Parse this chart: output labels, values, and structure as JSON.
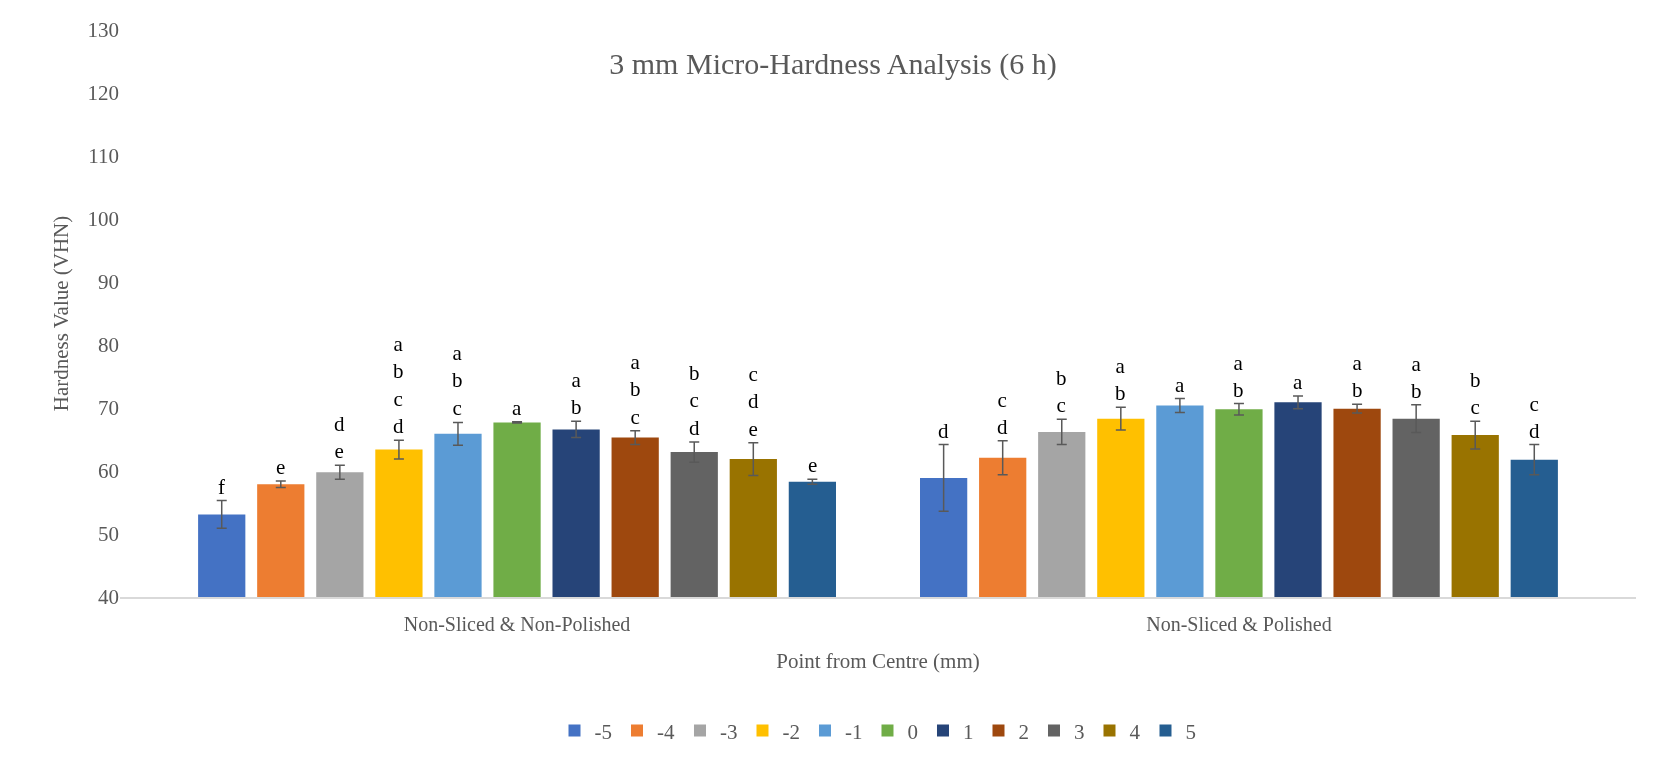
{
  "chart_data": {
    "type": "bar",
    "title": "3 mm Micro-Hardness Analysis (6 h)",
    "xlabel": "Point from Centre (mm)",
    "ylabel": "Hardness Value (VHN)",
    "categories": [
      "Non-Sliced & Non-Polished",
      "Non-Sliced & Polished"
    ],
    "ylim": [
      40,
      130
    ],
    "yticks": [
      40,
      50,
      60,
      70,
      80,
      90,
      100,
      110,
      120,
      130
    ],
    "grid": false,
    "legend": "bottom",
    "series": [
      {
        "name": "-5",
        "color": "#4472c4",
        "values": [
          53.1,
          58.9
        ],
        "errors": [
          2.2,
          5.3
        ],
        "value_labels": [
          "f",
          "d"
        ]
      },
      {
        "name": "-4",
        "color": "#ed7d31",
        "values": [
          57.9,
          62.1
        ],
        "errors": [
          0.5,
          2.7
        ],
        "value_labels": [
          "e",
          "c\nd"
        ]
      },
      {
        "name": "-3",
        "color": "#a5a5a5",
        "values": [
          59.8,
          66.2
        ],
        "errors": [
          1.1,
          2.0
        ],
        "value_labels": [
          "d\ne",
          "b\nc"
        ]
      },
      {
        "name": "-2",
        "color": "#ffc000",
        "values": [
          63.4,
          68.3
        ],
        "errors": [
          1.5,
          1.8
        ],
        "value_labels": [
          "a\nb\nc\nd",
          "a\nb"
        ]
      },
      {
        "name": "-1",
        "color": "#5b9bd5",
        "values": [
          65.9,
          70.4
        ],
        "errors": [
          1.8,
          1.1
        ],
        "value_labels": [
          "a\nb\nc",
          "a"
        ]
      },
      {
        "name": "0",
        "color": "#70ad47",
        "values": [
          67.7,
          69.8
        ],
        "errors": [
          0.1,
          0.9
        ],
        "value_labels": [
          "a",
          "a\nb"
        ]
      },
      {
        "name": "1",
        "color": "#264478",
        "values": [
          66.6,
          70.9
        ],
        "errors": [
          1.3,
          1.0
        ],
        "value_labels": [
          "a\nb",
          "a"
        ]
      },
      {
        "name": "2",
        "color": "#9e480e",
        "values": [
          65.3,
          69.9
        ],
        "errors": [
          1.1,
          0.7
        ],
        "value_labels": [
          "a\nb\nc",
          "a\nb"
        ]
      },
      {
        "name": "3",
        "color": "#636363",
        "values": [
          63.0,
          68.3
        ],
        "errors": [
          1.6,
          2.2
        ],
        "value_labels": [
          "b\nc\nd",
          "a\nb"
        ]
      },
      {
        "name": "4",
        "color": "#997300",
        "values": [
          61.9,
          65.7
        ],
        "errors": [
          2.6,
          2.2
        ],
        "value_labels": [
          "c\nd\ne",
          "b\nc"
        ]
      },
      {
        "name": "5",
        "color": "#255e91",
        "values": [
          58.3,
          61.8
        ],
        "errors": [
          0.4,
          2.4
        ],
        "value_labels": [
          "e",
          "c\nd"
        ]
      }
    ]
  }
}
